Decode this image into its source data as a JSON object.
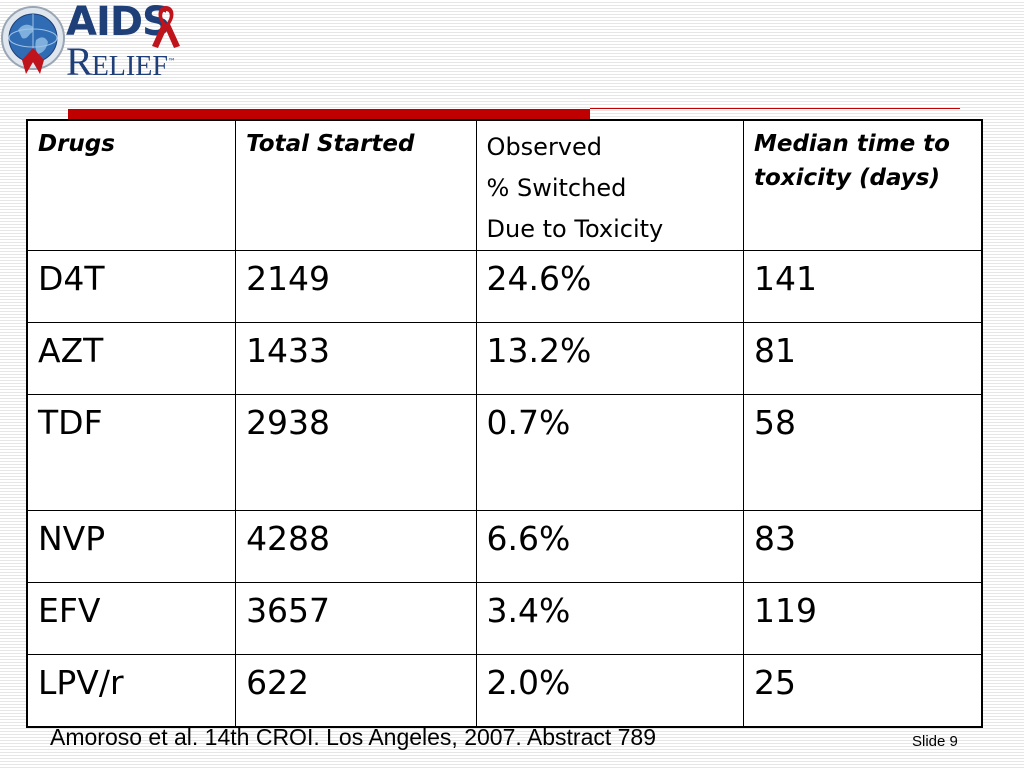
{
  "logo": {
    "brand_aids": "AIDS",
    "brand_relief_r": "R",
    "brand_relief_rest": "ELIEF",
    "brand_tm": "™",
    "icons": [
      "globe-seal-icon",
      "red-ribbon-icon"
    ],
    "brand_color": "#1f3f78",
    "ribbon_color": "#c0141c"
  },
  "accent_color": "#c00000",
  "table": {
    "headers": {
      "drugs": "Drugs",
      "total_started": "Total Started",
      "observed_line1": "Observed",
      "observed_line2": "% Switched",
      "observed_line3": "Due to Toxicity",
      "median": "Median time to toxicity (days)"
    },
    "rows": [
      {
        "drug": "D4T",
        "total": "2149",
        "switched": "24.6%",
        "median": "141"
      },
      {
        "drug": "AZT",
        "total": "1433",
        "switched": "13.2%",
        "median": "81"
      },
      {
        "drug": "TDF",
        "total": "2938",
        "switched": "0.7%",
        "median": "58"
      },
      {
        "drug": "NVP",
        "total": "4288",
        "switched": "6.6%",
        "median": "83"
      },
      {
        "drug": "EFV",
        "total": "3657",
        "switched": "3.4%",
        "median": "119"
      },
      {
        "drug": "LPV/r",
        "total": "622",
        "switched": "2.0%",
        "median": "25"
      }
    ]
  },
  "footer": {
    "citation": "Amoroso et al. 14th CROI. Los Angeles, 2007. Abstract 789",
    "slide_label": "Slide 9"
  }
}
